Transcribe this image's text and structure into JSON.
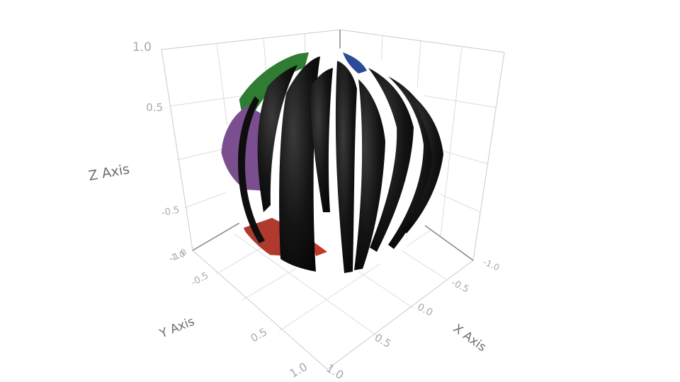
{
  "chart_data": {
    "type": "surface3d",
    "surface": "sphere",
    "radius": 1,
    "axes": {
      "x": {
        "title": "X Axis",
        "range": [
          -1,
          1
        ],
        "ticks": [
          "-1.0",
          "-0.5",
          "0.0",
          "0.5",
          "1.0"
        ]
      },
      "y": {
        "title": "Y Axis",
        "range": [
          -1,
          1
        ],
        "ticks": [
          "-1.0",
          "-0.5",
          "0.5",
          "1.0"
        ]
      },
      "z": {
        "title": "Z Axis",
        "range": [
          -1,
          1
        ],
        "ticks": [
          "-1.0",
          "-0.5",
          "0.5",
          "1.0"
        ]
      }
    },
    "grid": true,
    "colored_patches": [
      {
        "region": "upper-left cap",
        "color": "#2e7d32"
      },
      {
        "region": "left side",
        "color": "#7b4f8f"
      },
      {
        "region": "lower-left",
        "color": "#b03a2e"
      },
      {
        "region": "top-right cap",
        "color": "#2c4a9a"
      }
    ],
    "dominant_band_color": "#111111"
  }
}
